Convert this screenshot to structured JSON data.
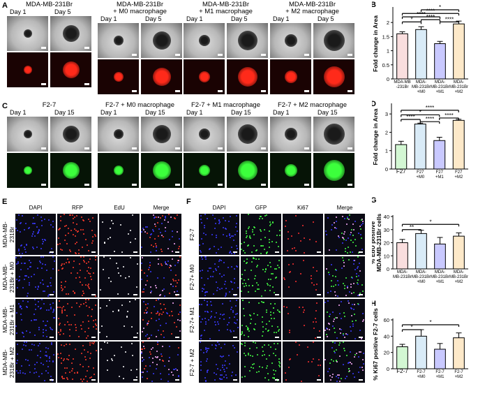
{
  "panels": {
    "A": {
      "letter": "A",
      "groups": [
        {
          "title": "MDA-MB-231Br",
          "day_left": "Day 1",
          "day_right": "Day 5"
        },
        {
          "title": "MDA-MB-231Br\n+ M0 macrophage",
          "day_left": "Day 1",
          "day_right": "Day 5"
        },
        {
          "title": "MDA-MB-231Br\n+ M1 macrophage",
          "day_left": "Day 1",
          "day_right": "Day 5"
        },
        {
          "title": "MDA-MB-231Br\n+ M2 macrophage",
          "day_left": "Day 1",
          "day_right": "Day 5"
        }
      ]
    },
    "C": {
      "letter": "C",
      "groups": [
        {
          "title": "F2-7",
          "day_left": "Day 1",
          "day_right": "Day  15"
        },
        {
          "title": "F2-7 + M0 macrophage",
          "day_left": "Day 1",
          "day_right": "Day  15"
        },
        {
          "title": "F2-7 + M1 macrophage",
          "day_left": "Day 1",
          "day_right": "Day  15"
        },
        {
          "title": "F2-7 + M2 macrophage",
          "day_left": "Day 1",
          "day_right": "Day  15"
        }
      ]
    },
    "E": {
      "letter": "E",
      "columns": [
        "DAPI",
        "RFP",
        "EdU",
        "Merge"
      ],
      "rows": [
        "MDA-MB-\n231Br",
        "MDA-MB-\n231Br + M0",
        "MDA-MB-\n231Br + M1",
        "MDA-MB-\n231Br + M2"
      ]
    },
    "F": {
      "letter": "F",
      "columns": [
        "DAPI",
        "GFP",
        "Ki67",
        "Merge"
      ],
      "rows": [
        "F2-7",
        "F2-7+ M0",
        "F2-7+ M1",
        "F2-7 + M2"
      ]
    }
  },
  "chart_data": [
    {
      "panel": "B",
      "type": "bar",
      "ylabel": "Fold change in Area",
      "ylim": [
        0,
        2.5
      ],
      "yticks": [
        0,
        0.5,
        1,
        1.5,
        2
      ],
      "categories": [
        "MDA-MB\n-231Br",
        "MDA-\nMB-231Br\n+M0",
        "MDA-\nMB-231Br\n+M1",
        "MDA-\nMB-231Br\n+M2"
      ],
      "values": [
        1.6,
        1.75,
        1.25,
        1.95
      ],
      "errors": [
        0.07,
        0.1,
        0.08,
        0.1
      ],
      "colors": [
        "#f9dede",
        "#d9ebf7",
        "#c9c9ff",
        "#fde9c9"
      ],
      "significance": [
        {
          "from": 0,
          "to": 1,
          "label": "*",
          "y": 2.02
        },
        {
          "from": 1,
          "to": 2,
          "label": "****",
          "y": 2.1
        },
        {
          "from": 2,
          "to": 3,
          "label": "****",
          "y": 2.02
        },
        {
          "from": 0,
          "to": 2,
          "label": "****",
          "y": 2.2
        },
        {
          "from": 0,
          "to": 3,
          "label": "****",
          "y": 2.32
        },
        {
          "from": 1,
          "to": 3,
          "label": "*",
          "y": 2.45
        }
      ]
    },
    {
      "panel": "D",
      "type": "bar",
      "ylabel": "Fold change in Area",
      "ylim": [
        0,
        3.5
      ],
      "yticks": [
        0,
        1,
        2,
        3
      ],
      "categories": [
        "F27",
        "F27\n+M0",
        "F27\n+M1",
        "F27\n+M2"
      ],
      "values": [
        1.33,
        2.45,
        1.55,
        2.65
      ],
      "errors": [
        0.18,
        0.05,
        0.18,
        0.06
      ],
      "colors": [
        "#d3f7d3",
        "#d9ebf7",
        "#c9c9ff",
        "#fde9c9"
      ],
      "significance": [
        {
          "from": 0,
          "to": 1,
          "label": "****",
          "y": 2.7
        },
        {
          "from": 1,
          "to": 2,
          "label": "****",
          "y": 2.58
        },
        {
          "from": 2,
          "to": 3,
          "label": "****",
          "y": 2.78
        },
        {
          "from": 0,
          "to": 2,
          "label": "*",
          "y": 2.95
        },
        {
          "from": 0,
          "to": 3,
          "label": "****",
          "y": 3.2
        }
      ]
    },
    {
      "panel": "G",
      "type": "bar",
      "ylabel": "% EdU positive\nMDA-MB-231Br cells",
      "ylim": [
        0,
        40
      ],
      "yticks": [
        0,
        10,
        20,
        30,
        40
      ],
      "categories": [
        "MDA-\nMB-231Br",
        "MDA-\nMB-231Br\n+M0",
        "MDA-\nMB-231Br\n+M1",
        "MDA-\nMB-231Br\n+M2"
      ],
      "values": [
        20,
        27,
        19,
        25
      ],
      "errors": [
        2.5,
        2.5,
        5,
        2.5
      ],
      "colors": [
        "#f9dede",
        "#d9ebf7",
        "#c9c9ff",
        "#fde9c9"
      ],
      "significance": [
        {
          "from": 0,
          "to": 1,
          "label": "**",
          "y": 30
        },
        {
          "from": 0,
          "to": 3,
          "label": "*",
          "y": 34
        }
      ]
    },
    {
      "panel": "H",
      "type": "bar",
      "ylabel": "% Ki67 positive F2-7 cells",
      "ylim": [
        0,
        60
      ],
      "yticks": [
        0,
        20,
        40,
        60
      ],
      "categories": [
        "F2-7",
        "F2-7\n+M0",
        "F2-7\n+M1",
        "F2-7\n+M2"
      ],
      "values": [
        27,
        40,
        24,
        38
      ],
      "errors": [
        3,
        8,
        7,
        6
      ],
      "colors": [
        "#d3f7d3",
        "#d9ebf7",
        "#c9c9ff",
        "#fde9c9"
      ],
      "significance": [
        {
          "from": 0,
          "to": 1,
          "label": "*",
          "y": 48
        },
        {
          "from": 0,
          "to": 3,
          "label": "*",
          "y": 54
        }
      ]
    }
  ]
}
